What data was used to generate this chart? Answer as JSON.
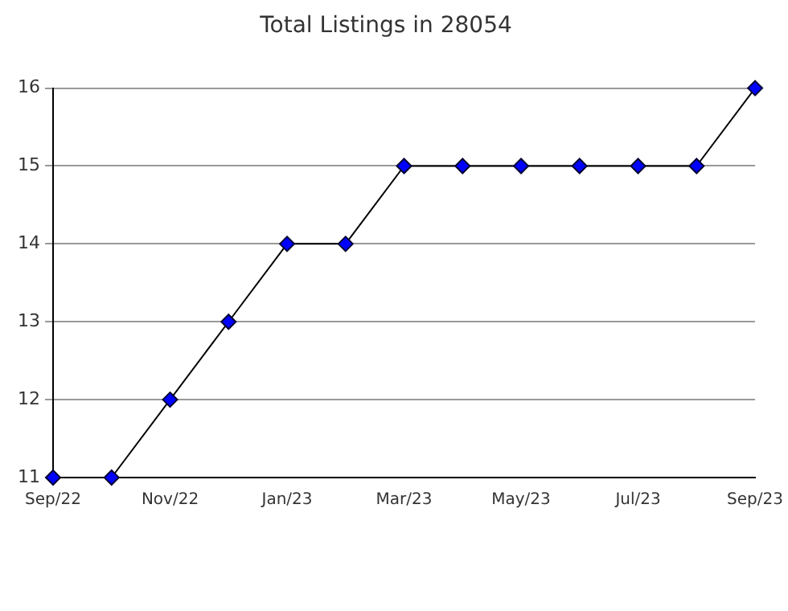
{
  "chart_data": {
    "type": "line",
    "title": "Total Listings in 28054",
    "categories": [
      "Sep/22",
      null,
      "Nov/22",
      null,
      "Jan/23",
      null,
      "Mar/23",
      null,
      "May/23",
      null,
      "Jul/23",
      null,
      "Sep/23"
    ],
    "series": [
      {
        "color": "#0000ff",
        "values": [
          11,
          11,
          12,
          13,
          14,
          14,
          15,
          15,
          15,
          15,
          15,
          15,
          16
        ]
      }
    ],
    "ylim": [
      11,
      16
    ],
    "yticks": [
      11,
      12,
      13,
      14,
      15,
      16
    ],
    "grid": "y",
    "marker": "diamond",
    "line_style": "solid",
    "legend": false
  }
}
